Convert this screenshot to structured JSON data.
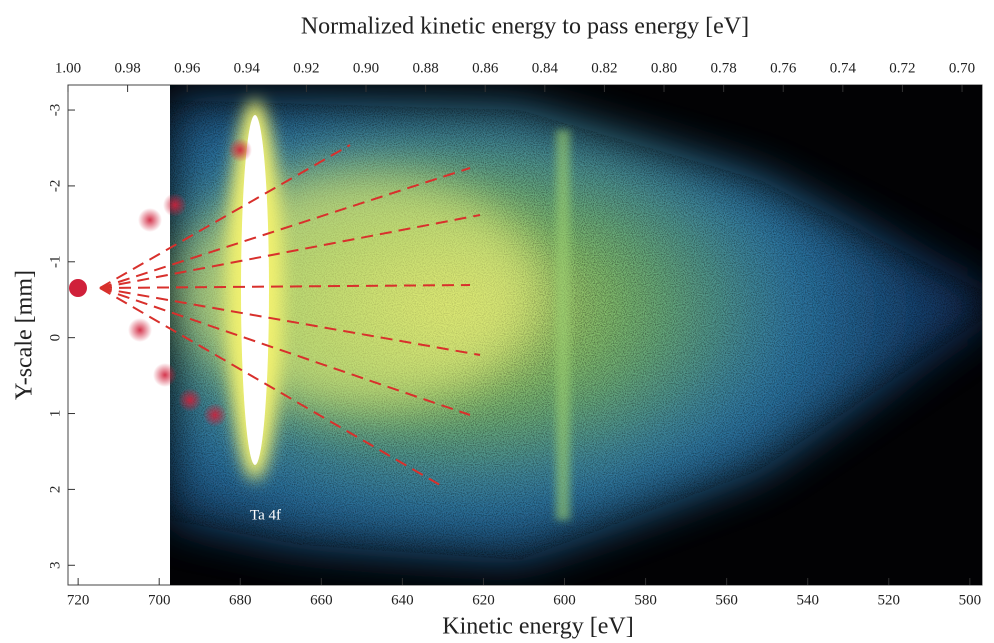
{
  "chart_data": {
    "type": "image",
    "title": "Normalized kinetic energy to pass energy [eV]",
    "x_label": "Kinetic energy [eV]",
    "y_label": "Y-scale [mm]",
    "annotation": "Ta 4f",
    "xlim": [
      722.5,
      497
    ],
    "xticks": [
      720,
      700,
      680,
      660,
      640,
      620,
      600,
      580,
      560,
      540,
      520,
      500
    ],
    "x2lim": [
      1.0,
      0.6933
    ],
    "x2ticks": [
      {
        "value": 1.0,
        "label": "1.00"
      },
      0.98,
      0.96,
      0.94,
      0.92,
      {
        "value": 0.9,
        "label": "0.90"
      },
      0.88,
      0.86,
      0.84,
      0.82,
      {
        "value": 0.8,
        "label": "0.80"
      },
      0.78,
      0.76,
      0.74,
      0.72,
      {
        "value": 0.7,
        "label": "0.70"
      }
    ],
    "ylim": [
      3.26,
      -3.33
    ],
    "yticks": [
      -3,
      -2,
      -1,
      0,
      1,
      2,
      3
    ]
  }
}
